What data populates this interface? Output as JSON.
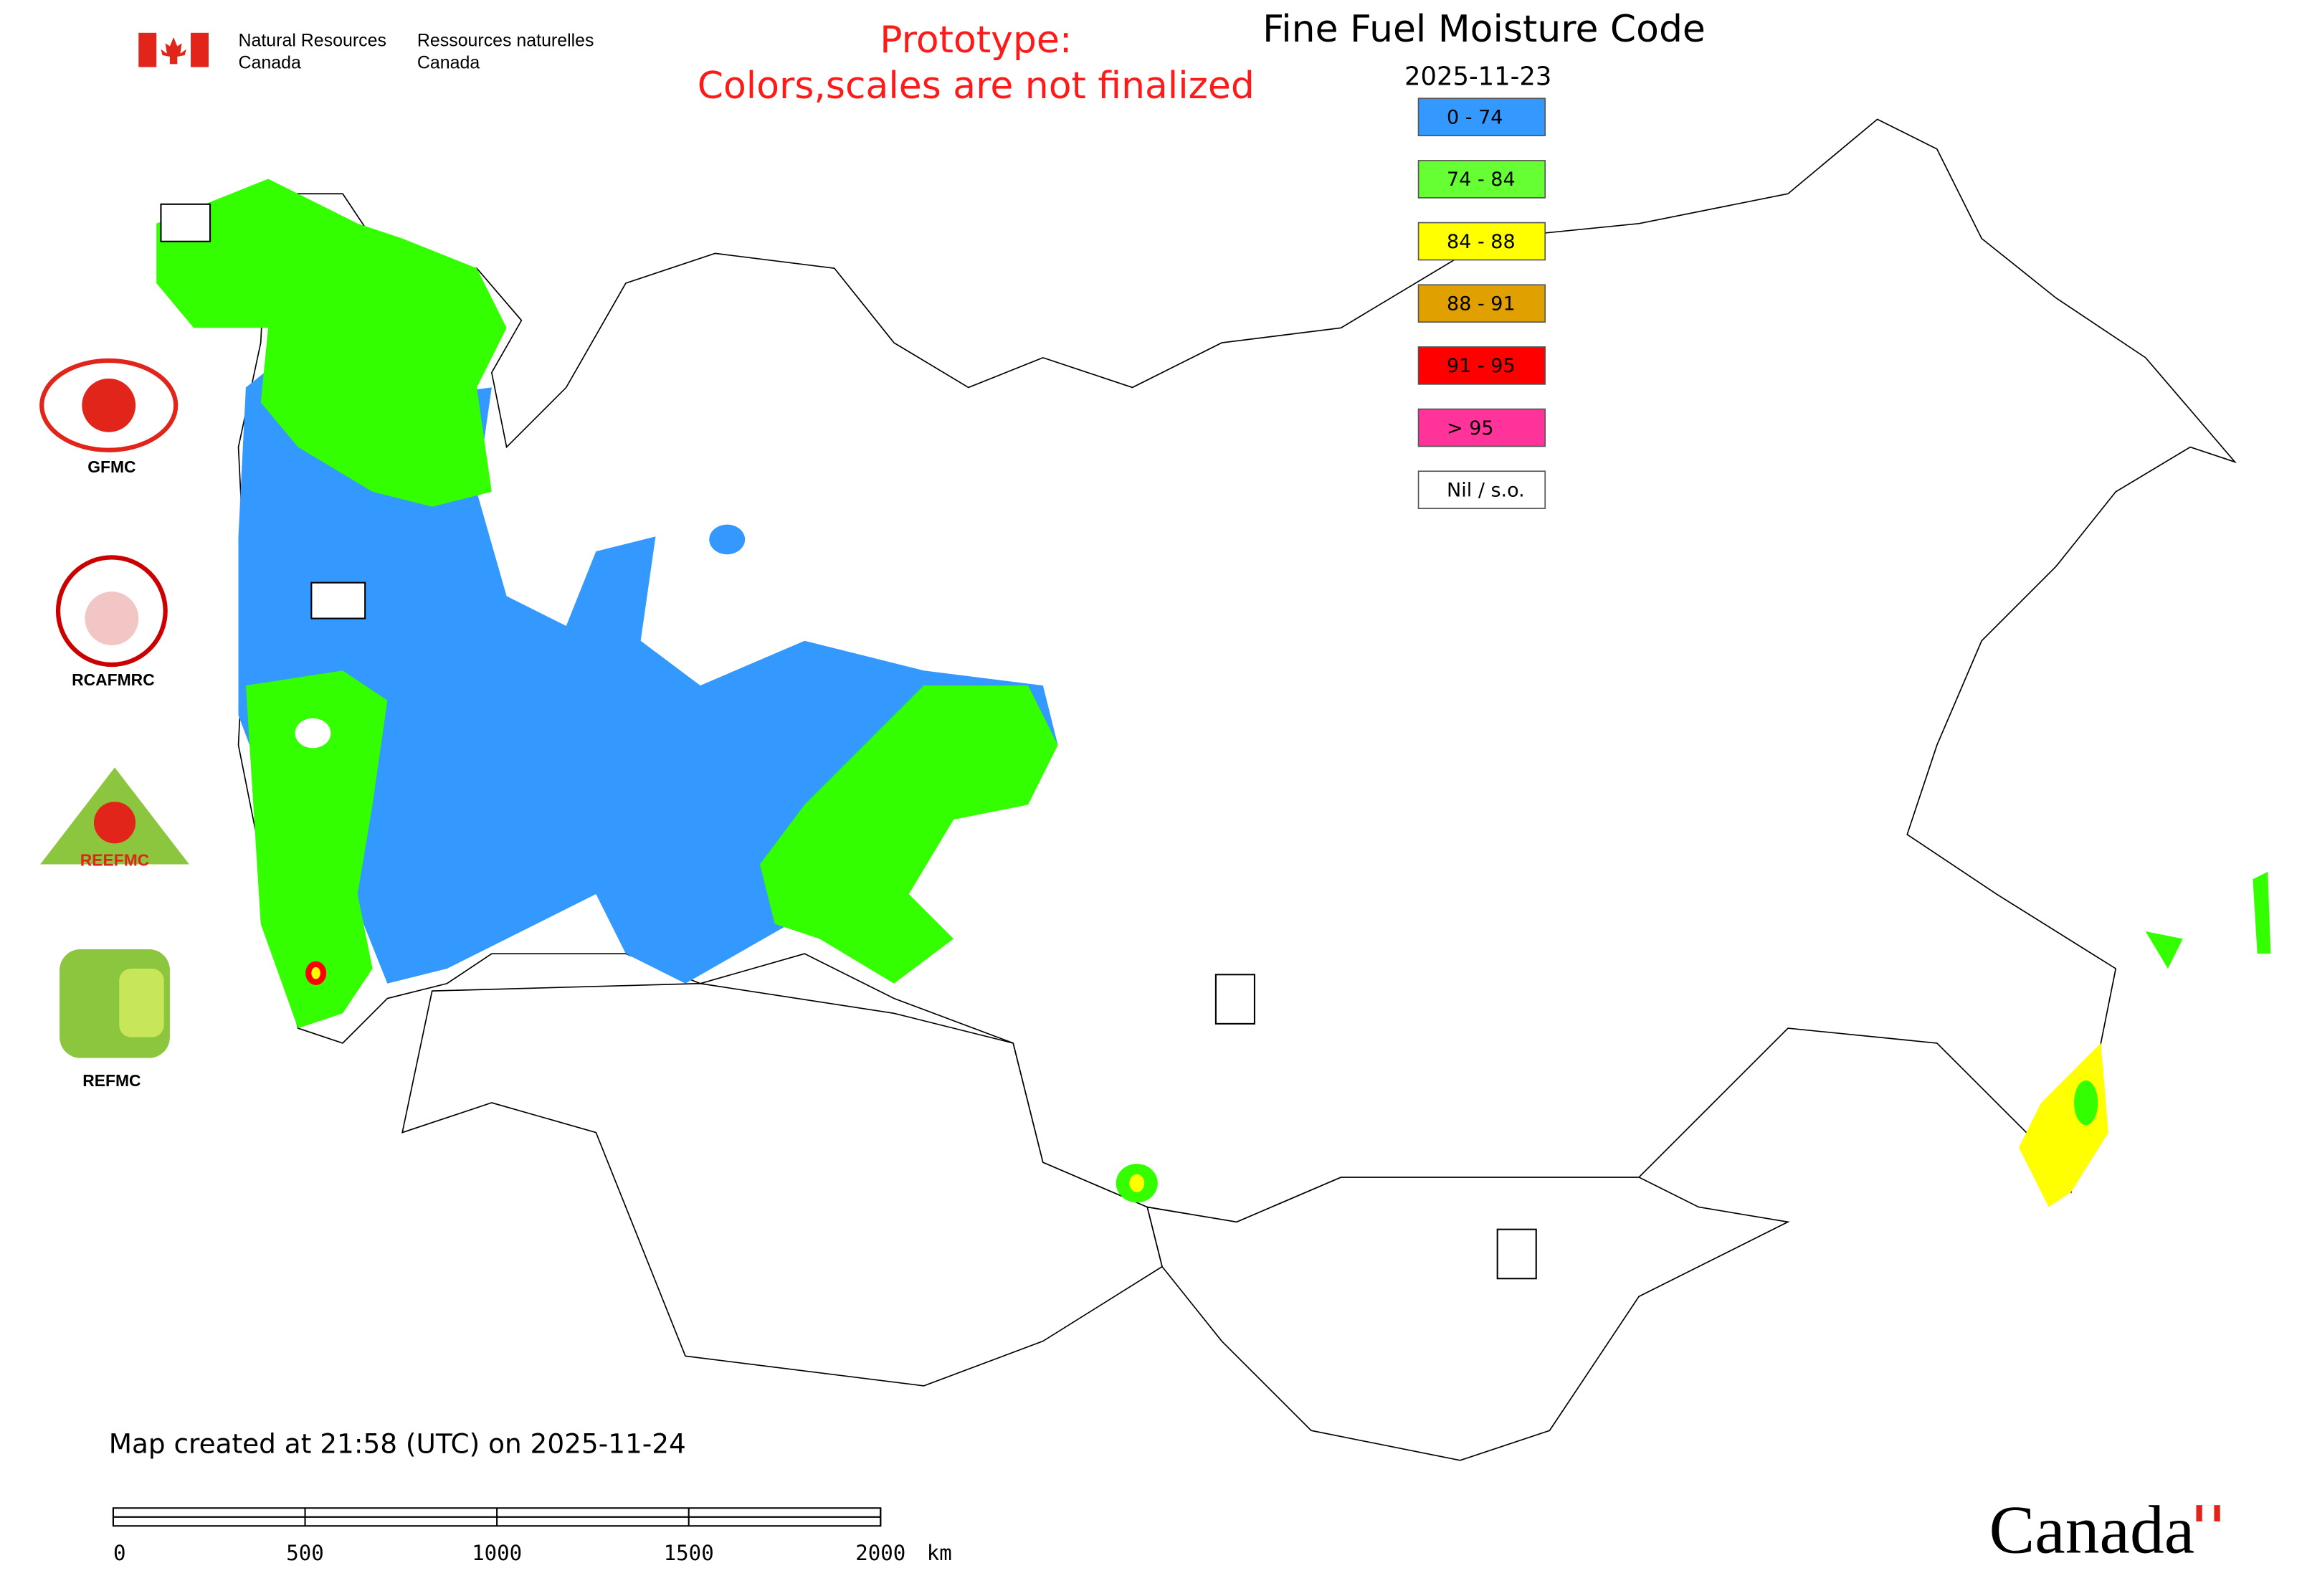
{
  "header": {
    "agency_en_line1": "Natural Resources",
    "agency_en_line2": "Canada",
    "agency_fr_line1": "Ressources naturelles",
    "agency_fr_line2": "Canada"
  },
  "notice": [
    "Prototype:",
    "Colors,scales are not finalized"
  ],
  "title": "Fine Fuel Moisture Code",
  "date": "2025-11-23",
  "legend": [
    {
      "label": "0 - 74",
      "color": "#3399ff"
    },
    {
      "label": "74 - 84",
      "color": "#66ff33"
    },
    {
      "label": "84 - 88",
      "color": "#ffff00"
    },
    {
      "label": "88 - 91",
      "color": "#e0a000"
    },
    {
      "label": "91 - 95",
      "color": "#ff0000"
    },
    {
      "label": "> 95",
      "color": "#ff3399"
    },
    {
      "label": "Nil / s.o.",
      "color": "#ffffff"
    }
  ],
  "logos": [
    "GFMC",
    "RCAFMRC",
    "REEFMC",
    "REFMC"
  ],
  "footer": {
    "created": "Map created at 21:58 (UTC) on 2025-11-24",
    "scale_labels": [
      "0",
      "500",
      "1000",
      "1500",
      "2000"
    ],
    "scale_unit": "km",
    "wordmark": "Canada"
  }
}
